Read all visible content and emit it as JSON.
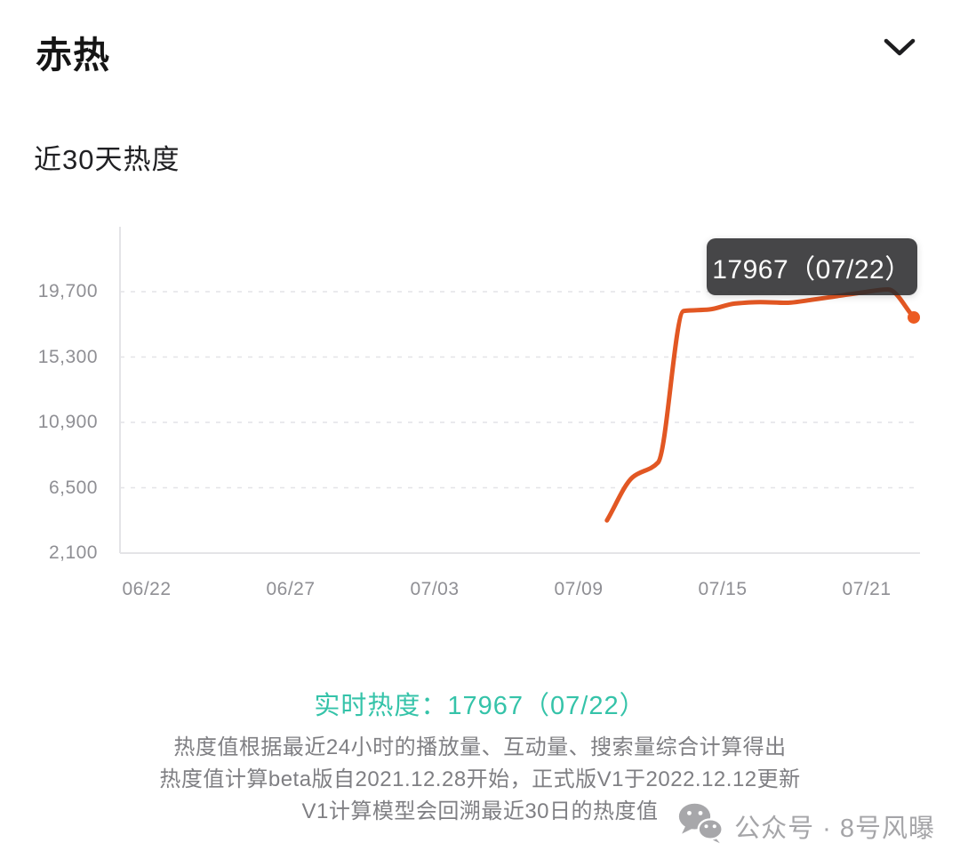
{
  "panel": {
    "title": "赤热",
    "section_title": "近30天热度",
    "collapse_icon": "chevron-down"
  },
  "chart_data": {
    "type": "line",
    "title": "近30天热度",
    "x_tick_labels": [
      "06/22",
      "06/27",
      "07/03",
      "07/09",
      "07/15",
      "07/21"
    ],
    "x_domain": [
      "06/22",
      "07/22"
    ],
    "y_tick_labels": [
      "19,700",
      "15,300",
      "10,900",
      "6,500",
      "2,100"
    ],
    "y_tick_values": [
      19700,
      15300,
      10900,
      6500,
      2100
    ],
    "ylim": [
      2100,
      24100
    ],
    "grid": "horizontal-dashed",
    "line_color": "#E25723",
    "dot_color": "#EC5B22",
    "series": [
      {
        "name": "热度",
        "points": [
          {
            "date": "07/10",
            "value": 4300
          },
          {
            "date": "07/11",
            "value": 7200
          },
          {
            "date": "07/12",
            "value": 8200
          },
          {
            "date": "07/13",
            "value": 18400
          },
          {
            "date": "07/14",
            "value": 18500
          },
          {
            "date": "07/15",
            "value": 18900
          },
          {
            "date": "07/16",
            "value": 19000
          },
          {
            "date": "07/17",
            "value": 18950
          },
          {
            "date": "07/18",
            "value": 19150
          },
          {
            "date": "07/19",
            "value": 19400
          },
          {
            "date": "07/20",
            "value": 19650
          },
          {
            "date": "07/21",
            "value": 19850
          },
          {
            "date": "07/22",
            "value": 17967
          }
        ]
      }
    ],
    "tooltip": {
      "text": "17967（07/22）",
      "value": 17967,
      "date": "07/22"
    },
    "end_dot": {
      "date": "07/22",
      "value": 17967
    }
  },
  "realtime": {
    "text": "实时热度：17967（07/22）",
    "label": "实时热度",
    "value": "17967",
    "date": "07/22",
    "color": "#35C3A9"
  },
  "notes": {
    "line1": "热度值根据最近24小时的播放量、互动量、搜索量综合计算得出",
    "line2": "热度值计算beta版自2021.12.28开始，正式版V1于2022.12.12更新",
    "line3": "V1计算模型会回溯最近30日的热度值"
  },
  "watermark": {
    "icon": "wechat",
    "text": "公众号 · 8号风曝"
  }
}
